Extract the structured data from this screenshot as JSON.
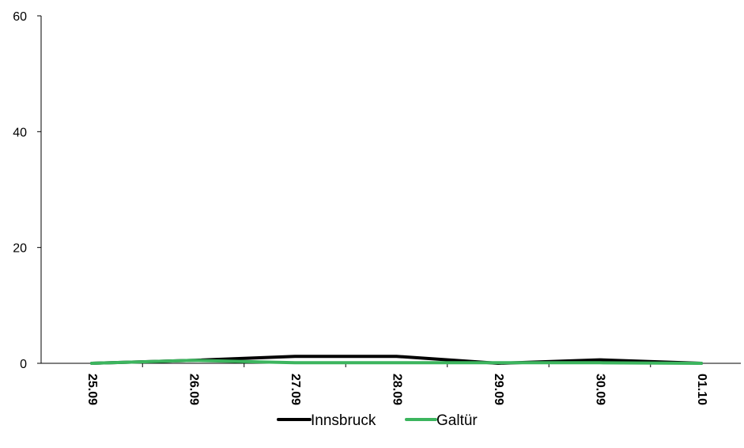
{
  "chart_data": {
    "type": "line",
    "title": "",
    "xlabel": "",
    "ylabel": "",
    "categories": [
      "25.09",
      "26.09",
      "27.09",
      "28.09",
      "29.09",
      "30.09",
      "01.10"
    ],
    "ylim": [
      0,
      60
    ],
    "yticks": [
      "0",
      "20",
      "40",
      "60"
    ],
    "grid": false,
    "legend": "bottom-center",
    "series": [
      {
        "name": "Innsbruck",
        "color": "#000000",
        "values": [
          0,
          0.5,
          1.2,
          1.2,
          0,
          0.6,
          0
        ]
      },
      {
        "name": "Galtür",
        "color": "#3cb55e",
        "values": [
          0,
          0.5,
          0.1,
          0.1,
          0.1,
          0.1,
          0
        ]
      }
    ]
  }
}
